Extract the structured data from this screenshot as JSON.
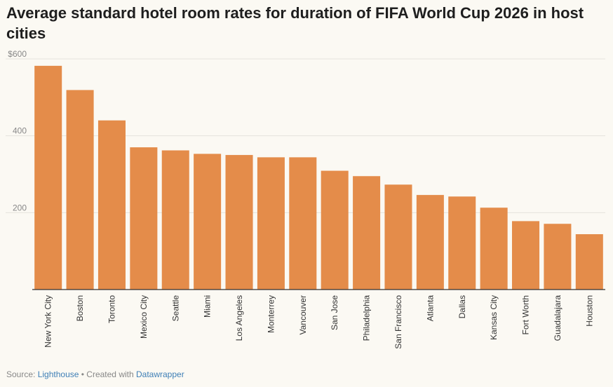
{
  "chart_data": {
    "type": "bar",
    "title": "Average standard hotel room rates for duration of FIFA World Cup 2026 in host cities",
    "categories": [
      "New York City",
      "Boston",
      "Toronto",
      "Mexico City",
      "Seattle",
      "Miami",
      "Los Angeles",
      "Monterrey",
      "Vancouver",
      "San Jose",
      "Philadelphia",
      "San Francisco",
      "Atlanta",
      "Dallas",
      "Kansas City",
      "Fort Worth",
      "Guadalajara",
      "Houston"
    ],
    "values": [
      582,
      519,
      440,
      370,
      362,
      353,
      350,
      344,
      344,
      309,
      295,
      273,
      246,
      242,
      213,
      178,
      171,
      144
    ],
    "ylim": [
      0,
      600
    ],
    "yticks": [
      {
        "value": 200,
        "label": "200"
      },
      {
        "value": 400,
        "label": "400"
      },
      {
        "value": 600,
        "label": "$600"
      }
    ],
    "xlabel": "",
    "ylabel": "",
    "bar_color": "#e48c4a",
    "grid": true
  },
  "footer": {
    "source_prefix": "Source: ",
    "source_name": "Lighthouse",
    "separator": " • Created with ",
    "tool_name": "Datawrapper"
  },
  "colors": {
    "background": "#fbf9f3",
    "gridline": "#e6e3dc",
    "axis": "#333333",
    "link": "#3f7fb6"
  }
}
